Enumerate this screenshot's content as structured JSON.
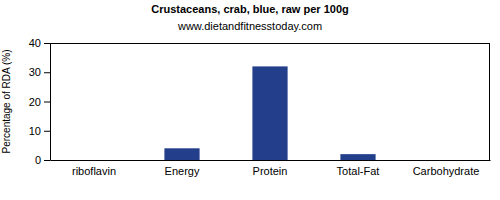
{
  "chart_data": {
    "type": "bar",
    "title": "Crustaceans, crab, blue, raw per 100g",
    "subtitle": "www.dietandfitnesstoday.com",
    "y_label": "Percentage of RDA (%)",
    "categories": [
      "riboflavin",
      "Energy",
      "Protein",
      "Total-Fat",
      "Carbohydrate"
    ],
    "values": [
      0,
      4,
      32,
      2,
      0
    ],
    "color": "#233f8c",
    "ylim": [
      0,
      40
    ],
    "yticks": [
      0,
      10,
      20,
      30,
      40
    ],
    "grid": false
  }
}
